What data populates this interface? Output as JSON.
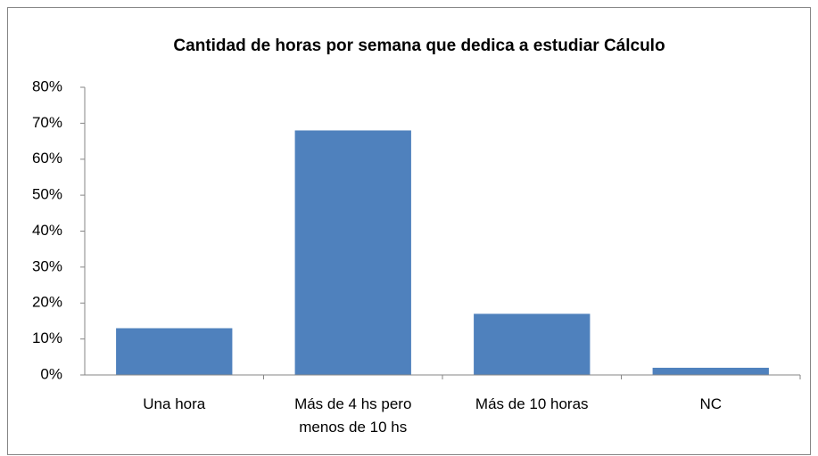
{
  "chart_data": {
    "type": "bar",
    "title": "Cantidad de horas por semana que dedica a estudiar Cálculo",
    "categories": [
      "Una hora",
      "Más de 4 hs pero menos de 10 hs",
      "Más de 10 horas",
      "NC"
    ],
    "values": [
      13,
      68,
      17,
      2
    ],
    "color": "#4f81bd",
    "ylim": [
      0,
      80
    ],
    "yticks": [
      {
        "value": 0,
        "label": "0%"
      },
      {
        "value": 10,
        "label": "10%"
      },
      {
        "value": 20,
        "label": "20%"
      },
      {
        "value": 30,
        "label": "30%"
      },
      {
        "value": 40,
        "label": "40%"
      },
      {
        "value": 50,
        "label": "50%"
      },
      {
        "value": 60,
        "label": "60%"
      },
      {
        "value": 70,
        "label": "70%"
      },
      {
        "value": 80,
        "label": "80%"
      }
    ],
    "grid": false
  }
}
